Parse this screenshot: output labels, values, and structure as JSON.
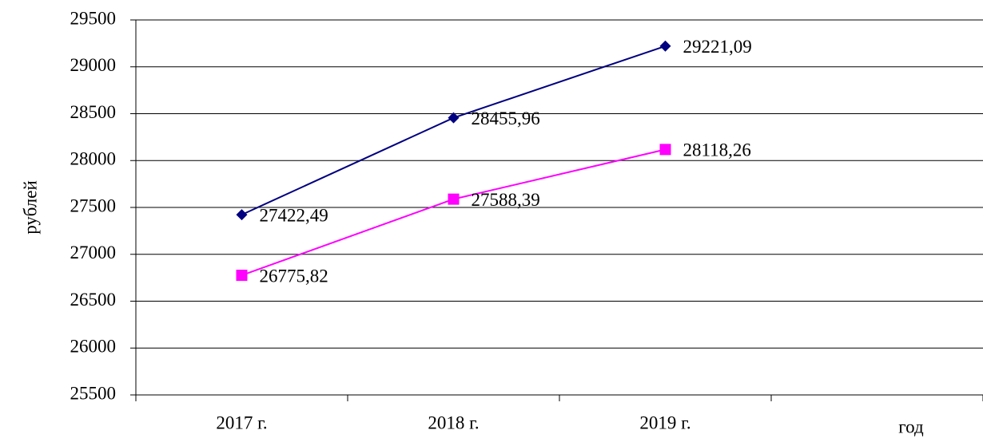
{
  "chart_data": {
    "type": "line",
    "categories": [
      "2017 г.",
      "2018 г.",
      "2019 г.",
      null
    ],
    "x_label": "год",
    "y_label": "рублей",
    "series": [
      {
        "color": "#000080",
        "marker": "diamond",
        "values": [
          27422.49,
          28455.96,
          29221.09,
          null
        ],
        "value_labels": [
          "27422,49",
          "28455,96",
          "29221,09",
          null
        ]
      },
      {
        "color": "#ff00ff",
        "marker": "square",
        "values": [
          26775.82,
          27588.39,
          28118.26,
          null
        ],
        "value_labels": [
          "26775,82",
          "27588,39",
          "28118,26",
          null
        ]
      }
    ],
    "ylim": [
      25500,
      29500
    ],
    "yticks": [
      25500,
      26000,
      26500,
      27000,
      27500,
      28000,
      28500,
      29000,
      29500
    ],
    "grid": true
  }
}
